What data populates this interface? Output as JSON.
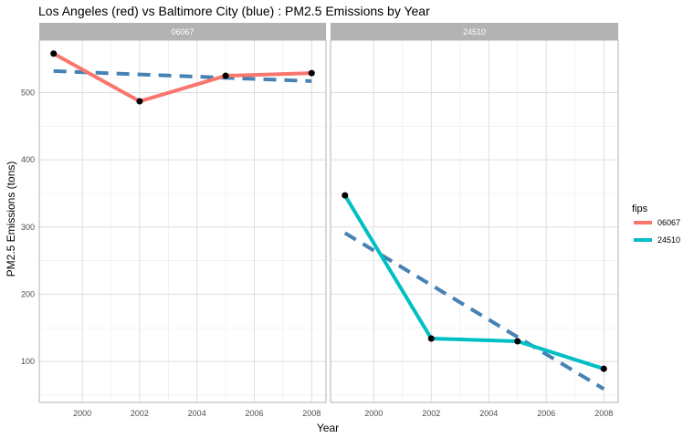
{
  "chart_data": {
    "type": "line",
    "title": "Los Angeles (red) vs Baltimore City (blue) : PM2.5 Emissions by Year",
    "xlabel": "Year",
    "ylabel": "PM2.5 Emissions (tons)",
    "x_ticks": [
      2000,
      2002,
      2004,
      2006,
      2008
    ],
    "y_ticks": [
      100,
      200,
      300,
      400,
      500
    ],
    "xlim": [
      1998.5,
      2008.5
    ],
    "ylim": [
      39,
      578
    ],
    "grid": true,
    "legend": {
      "title": "fips",
      "position": "right",
      "entries": [
        {
          "label": "06067",
          "color": "#F8766D"
        },
        {
          "label": "24510",
          "color": "#00BFC4"
        }
      ]
    },
    "panels": [
      {
        "strip_label": "06067",
        "series": {
          "name": "06067",
          "color": "#F8766D",
          "x": [
            1999,
            2002,
            2005,
            2008
          ],
          "y": [
            558,
            487,
            525,
            529
          ]
        },
        "trend": {
          "color": "#4682B4",
          "style": "dashed",
          "x": [
            1999,
            2008
          ],
          "y": [
            532,
            517
          ]
        }
      },
      {
        "strip_label": "24510",
        "series": {
          "name": "24510",
          "color": "#00BFC4",
          "x": [
            1999,
            2002,
            2005,
            2008
          ],
          "y": [
            347,
            134,
            130,
            89
          ]
        },
        "trend": {
          "color": "#4682B4",
          "style": "dashed",
          "x": [
            1999,
            2008
          ],
          "y": [
            291,
            59
          ]
        }
      }
    ]
  }
}
